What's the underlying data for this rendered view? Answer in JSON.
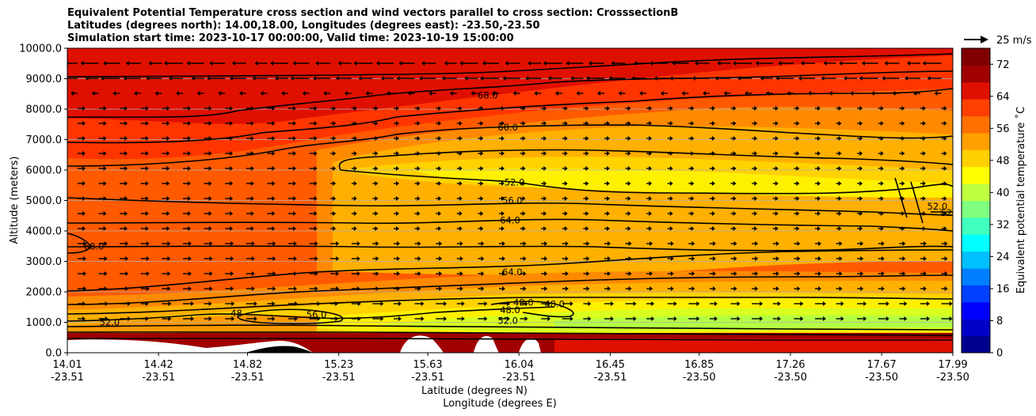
{
  "chart_data": {
    "type": "contour",
    "title": [
      "Equivalent Potential Temperature cross section and wind vectors parallel to cross section: CrosssectionB",
      "Latitudes (degrees north): 14.00,18.00, Longitudes (degrees east): -23.50,-23.50",
      "Simulation start time: 2023-10-17 00:00:00, Valid time: 2023-10-19 15:00:00"
    ],
    "ylabel": "Altitude (meters)",
    "xlabel_1": "Latitude (degrees N)",
    "xlabel_2": "Longitude (degrees E)",
    "ylim": [
      0,
      10000
    ],
    "y_ticks": [
      0,
      1000,
      2000,
      3000,
      4000,
      5000,
      6000,
      7000,
      8000,
      9000,
      10000
    ],
    "y_tick_labels": [
      "0.0",
      "1000.0",
      "2000.0",
      "3000.0",
      "4000.0",
      "5000.0",
      "6000.0",
      "7000.0",
      "8000.0",
      "9000.0",
      "10000.0"
    ],
    "x_ticks": [
      {
        "lat": "14.01",
        "lon": "-23.51"
      },
      {
        "lat": "14.42",
        "lon": "-23.51"
      },
      {
        "lat": "14.82",
        "lon": "-23.51"
      },
      {
        "lat": "15.23",
        "lon": "-23.51"
      },
      {
        "lat": "15.63",
        "lon": "-23.51"
      },
      {
        "lat": "16.04",
        "lon": "-23.51"
      },
      {
        "lat": "16.45",
        "lon": "-23.51"
      },
      {
        "lat": "16.85",
        "lon": "-23.50"
      },
      {
        "lat": "17.26",
        "lon": "-23.50"
      },
      {
        "lat": "17.67",
        "lon": "-23.50"
      },
      {
        "lat": "17.99",
        "lon": "-23.50"
      }
    ],
    "lat_range": [
      14.01,
      17.99
    ],
    "colorbar": {
      "label": "Equivalent potential temperature ˚C",
      "range": [
        0,
        76
      ],
      "ticks": [
        0,
        8,
        16,
        24,
        32,
        40,
        48,
        56,
        64,
        72
      ],
      "colors": [
        "#00008f",
        "#0000c8",
        "#0000ff",
        "#0040ff",
        "#0080ff",
        "#00bfff",
        "#00ffff",
        "#40ffbf",
        "#80ff80",
        "#bfff40",
        "#ffff00",
        "#ffd000",
        "#ffa000",
        "#ff7000",
        "#ff4000",
        "#e01000",
        "#a00000",
        "#800000"
      ]
    },
    "wind_key": {
      "label": "25 m/s"
    },
    "grid": "horizontal",
    "contour_labels": [
      {
        "text": "68.0",
        "lat": 15.9,
        "alt": 8450
      },
      {
        "text": "60.0",
        "lat": 15.99,
        "alt": 7400
      },
      {
        "text": "52.0",
        "lat": 16.02,
        "alt": 5600
      },
      {
        "text": "56.0",
        "lat": 16.01,
        "alt": 5000
      },
      {
        "text": "64.0",
        "lat": 16.0,
        "alt": 4350
      },
      {
        "text": "64.0",
        "lat": 16.01,
        "alt": 2650
      },
      {
        "text": "68.0",
        "lat": 14.13,
        "alt": 3500
      },
      {
        "text": "52.0",
        "lat": 17.92,
        "alt": 4800
      },
      {
        "text": "52.0",
        "lat": 17.98,
        "alt": 4600
      },
      {
        "text": "48.0",
        "lat": 16.06,
        "alt": 1650
      },
      {
        "text": "48.0",
        "lat": 16.0,
        "alt": 1400
      },
      {
        "text": "52.0",
        "lat": 15.99,
        "alt": 1050
      },
      {
        "text": "48.0",
        "lat": 16.2,
        "alt": 1600
      },
      {
        "text": "52.0",
        "lat": 14.2,
        "alt": 1000
      },
      {
        "text": "56.0",
        "lat": 15.13,
        "alt": 1250
      },
      {
        "text": "48",
        "lat": 14.77,
        "alt": 1300
      }
    ]
  }
}
